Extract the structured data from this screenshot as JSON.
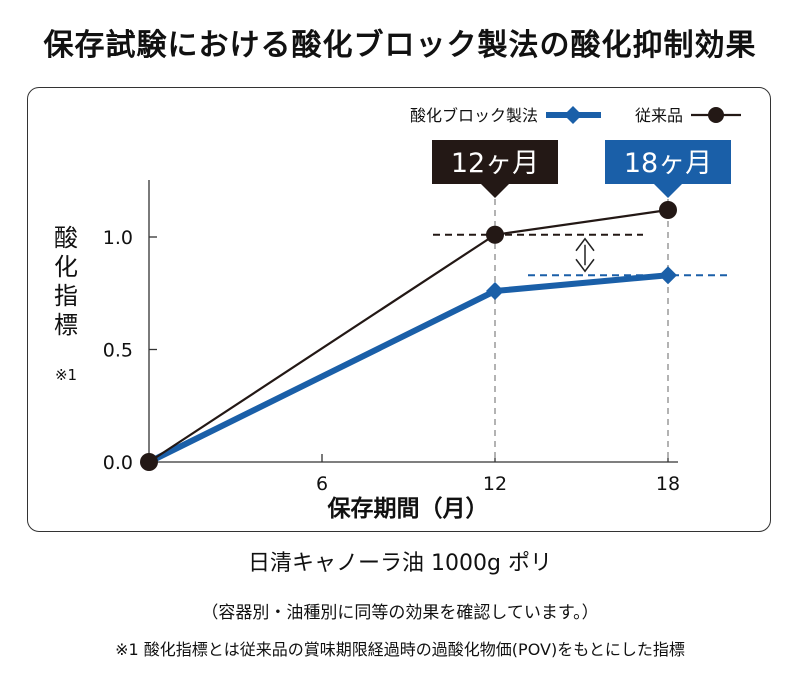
{
  "title": "保存試験における酸化ブロック製法の酸化抑制効果",
  "product": "日清キャノーラ油 1000g ポリ",
  "note": "（容器別・油種別に同等の効果を確認しています。）",
  "footnote": "※1  酸化指標とは従来品の賞味期限経過時の過酸化物価(POV)をもとにした指標",
  "colors": {
    "block_method": "#1a5fa8",
    "conventional": "#231815",
    "callout_12": "#231815",
    "callout_18": "#1a5fa8",
    "guide": "#b3b3b3"
  },
  "chart_data": {
    "type": "line",
    "xlabel": "保存期間（月）",
    "ylabel_chars": [
      "酸",
      "化",
      "指",
      "標"
    ],
    "ylabel_note": "※1",
    "x_ticks": [
      "6",
      "12",
      "18"
    ],
    "y_ticks": [
      "0.0",
      "0.5",
      "1.0"
    ],
    "xlim": [
      0,
      18
    ],
    "ylim": [
      0,
      1.25
    ],
    "series": [
      {
        "name": "酸化ブロック製法",
        "x": [
          0,
          12,
          18
        ],
        "y": [
          0,
          0.76,
          0.83
        ]
      },
      {
        "name": "従来品",
        "x": [
          0,
          12,
          18
        ],
        "y": [
          0,
          1.01,
          1.12
        ]
      }
    ],
    "callouts": [
      {
        "label": "12ヶ月",
        "x": 12
      },
      {
        "label": "18ヶ月",
        "x": 18
      }
    ],
    "legend_position": "top-right",
    "grid": false,
    "annotations": [
      "double-arrow between series at reference levels"
    ]
  }
}
